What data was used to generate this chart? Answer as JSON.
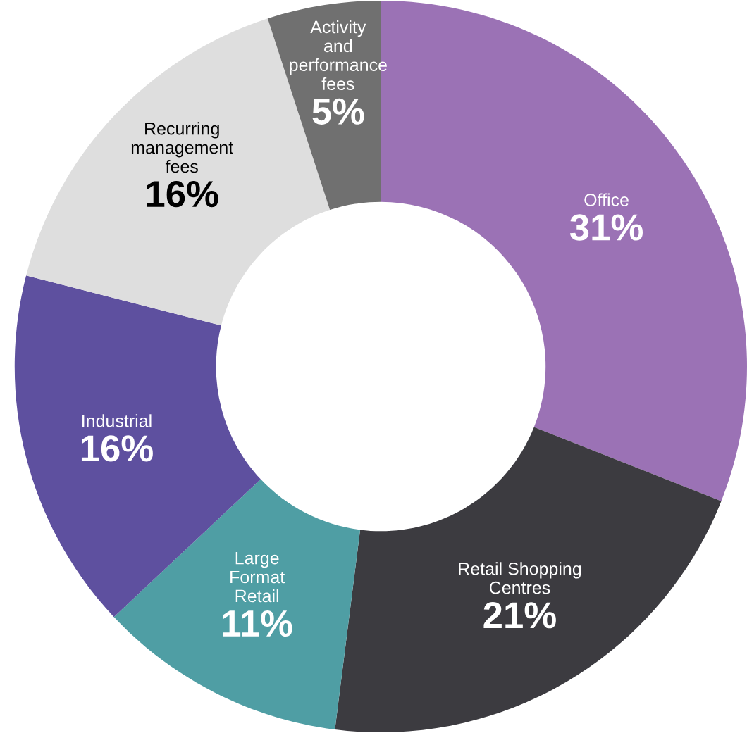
{
  "chart_data": {
    "type": "donut",
    "categories": [
      "Office",
      "Retail Shopping\nCentres",
      "Large\nFormat\nRetail",
      "Industrial",
      "Recurring\nmanagement\nfees",
      "Activity\nand\nperformance\nfees"
    ],
    "values": [
      31,
      21,
      11,
      16,
      16,
      5
    ],
    "value_labels": [
      "31%",
      "21%",
      "11%",
      "16%",
      "16%",
      "5%"
    ],
    "colors": [
      "#9b72b5",
      "#3c3b40",
      "#4f9ea4",
      "#5e509f",
      "#dedede",
      "#707070"
    ],
    "legend": false
  }
}
